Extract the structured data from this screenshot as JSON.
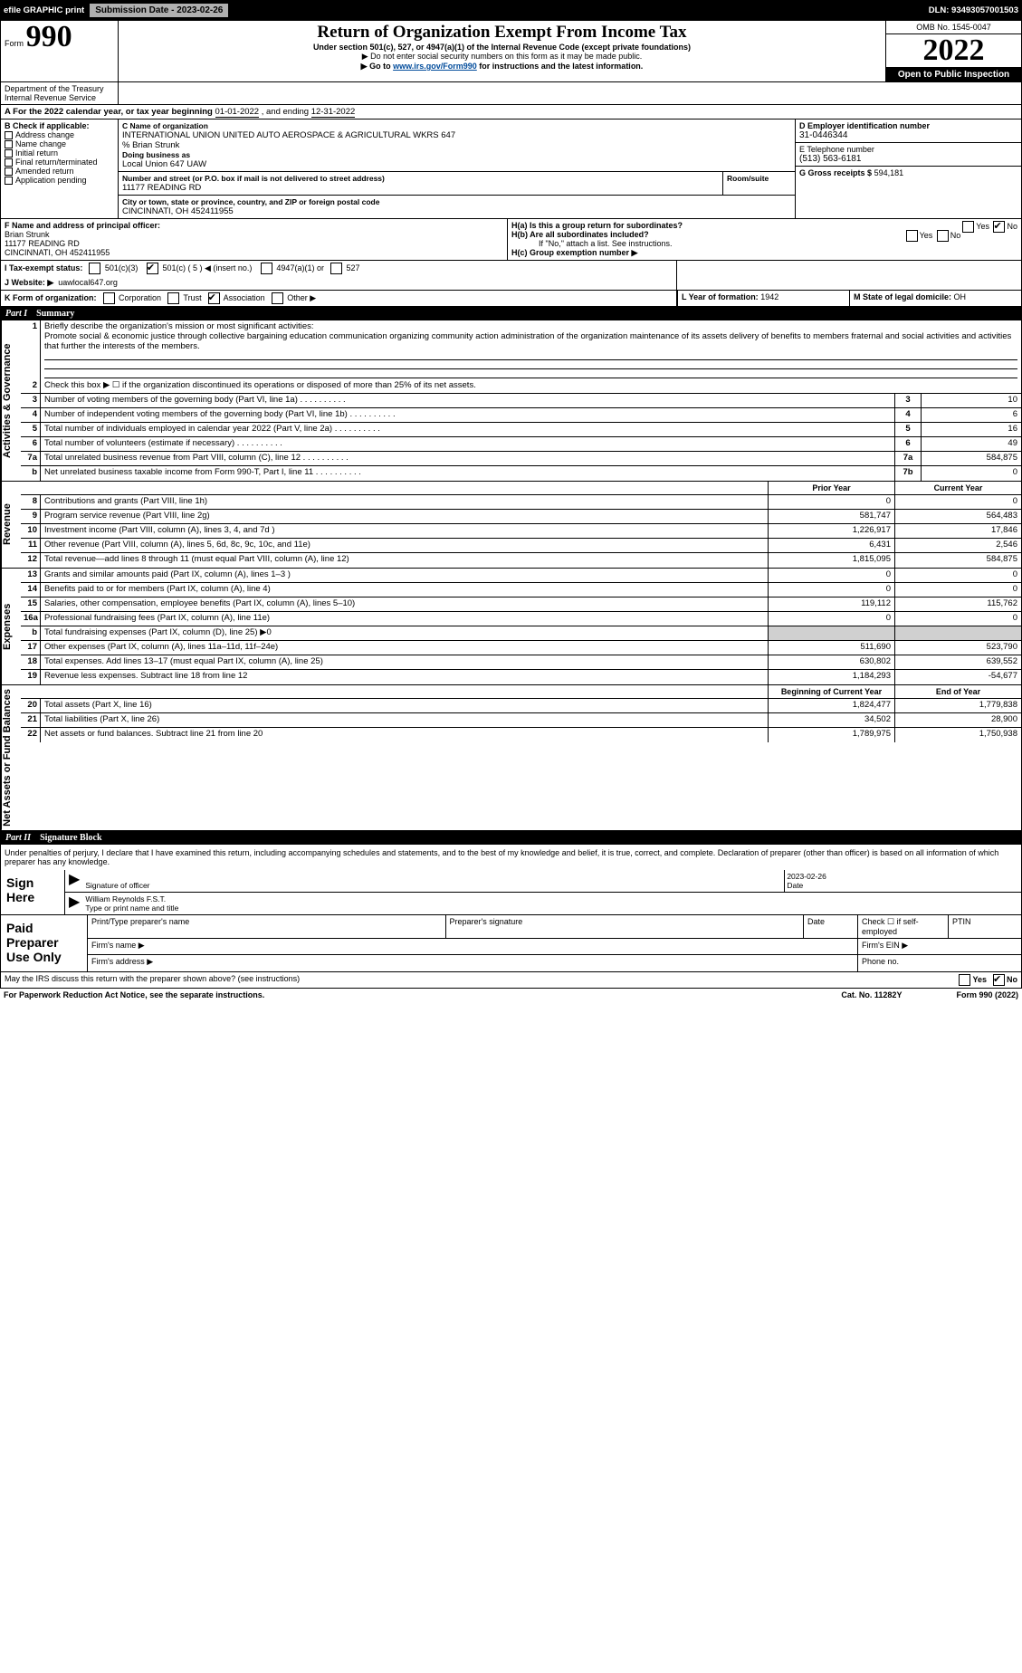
{
  "topbar": {
    "efile": "efile GRAPHIC print",
    "submission_label": "Submission Date - 2023-02-26",
    "dln": "DLN: 93493057001503"
  },
  "header": {
    "form_word": "Form",
    "form_num": "990",
    "title": "Return of Organization Exempt From Income Tax",
    "sub": "Under section 501(c), 527, or 4947(a)(1) of the Internal Revenue Code (except private foundations)",
    "note": "▶ Do not enter social security numbers on this form as it may be made public.",
    "goto_pre": "▶ Go to ",
    "goto_link": "www.irs.gov/Form990",
    "goto_post": " for instructions and the latest information.",
    "omb": "OMB No. 1545-0047",
    "year": "2022",
    "open": "Open to Public Inspection",
    "dept": "Department of the Treasury",
    "irs": "Internal Revenue Service"
  },
  "period": {
    "text_a": "A For the 2022 calendar year, or tax year beginning ",
    "begin": "01-01-2022",
    "text_b": " , and ending ",
    "end": "12-31-2022"
  },
  "blockB": {
    "B": "B Check if applicable:",
    "checks": [
      "Address change",
      "Name change",
      "Initial return",
      "Final return/terminated",
      "Amended return",
      "Application pending"
    ],
    "C_label": "C Name of organization",
    "C_name": "INTERNATIONAL UNION UNITED AUTO AEROSPACE & AGRICULTURAL WKRS 647",
    "care": "% Brian Strunk",
    "dba_label": "Doing business as",
    "dba": "Local Union 647 UAW",
    "street_label": "Number and street (or P.O. box if mail is not delivered to street address)",
    "street": "11177 READING RD",
    "room_label": "Room/suite",
    "city_label": "City or town, state or province, country, and ZIP or foreign postal code",
    "city": "CINCINNATI, OH  452411955",
    "D_label": "D Employer identification number",
    "D_val": "31-0446344",
    "E_label": "E Telephone number",
    "E_val": "(513) 563-6181",
    "G_label": "G Gross receipts $",
    "G_val": "594,181"
  },
  "rowFH": {
    "F_label": "F Name and address of principal officer:",
    "F_name": "Brian Strunk",
    "F_addr1": "11177 READING RD",
    "F_addr2": "CINCINNATI, OH  452411955",
    "Ha": "H(a)  Is this a group return for subordinates?",
    "Hb": "H(b)  Are all subordinates included?",
    "Hb_note": "If \"No,\" attach a list. See instructions.",
    "Hc": "H(c)  Group exemption number ▶",
    "Yes": "Yes",
    "No": "No"
  },
  "rowI": {
    "I": "I  Tax-exempt status:",
    "i1": "501(c)(3)",
    "i2": "501(c) ( 5 ) ◀ (insert no.)",
    "i3": "4947(a)(1) or",
    "i4": "527"
  },
  "rowJ": {
    "J": "J  Website: ▶",
    "val": "uawlocal647.org"
  },
  "rowK": {
    "K": "K Form of organization:",
    "opts": [
      "Corporation",
      "Trust",
      "Association",
      "Other ▶"
    ],
    "L": "L Year of formation: ",
    "L_val": "1942",
    "M": "M State of legal domicile: ",
    "M_val": "OH"
  },
  "partI": {
    "num": "Part I",
    "lbl": "Summary"
  },
  "summary": {
    "l1": "Briefly describe the organization's mission or most significant activities:",
    "l1_text": "Promote social & economic justice through collective bargaining education communication organizing community action administration of the organization maintenance of its assets delivery of benefits to members fraternal and social activities and activities that further the interests of the members.",
    "l2": "Check this box ▶ ☐ if the organization discontinued its operations or disposed of more than 25% of its net assets.",
    "rows": [
      {
        "n": "3",
        "d": "Number of voting members of the governing body (Part VI, line 1a)",
        "box": "3",
        "v": "10"
      },
      {
        "n": "4",
        "d": "Number of independent voting members of the governing body (Part VI, line 1b)",
        "box": "4",
        "v": "6"
      },
      {
        "n": "5",
        "d": "Total number of individuals employed in calendar year 2022 (Part V, line 2a)",
        "box": "5",
        "v": "16"
      },
      {
        "n": "6",
        "d": "Total number of volunteers (estimate if necessary)",
        "box": "6",
        "v": "49"
      },
      {
        "n": "7a",
        "d": "Total unrelated business revenue from Part VIII, column (C), line 12",
        "box": "7a",
        "v": "584,875"
      },
      {
        "n": "b",
        "d": "Net unrelated business taxable income from Form 990-T, Part I, line 11",
        "box": "7b",
        "v": "0"
      }
    ]
  },
  "twocol": {
    "prior": "Prior Year",
    "current": "Current Year",
    "boy": "Beginning of Current Year",
    "eoy": "End of Year"
  },
  "revenue": [
    {
      "n": "8",
      "d": "Contributions and grants (Part VIII, line 1h)",
      "p": "0",
      "c": "0"
    },
    {
      "n": "9",
      "d": "Program service revenue (Part VIII, line 2g)",
      "p": "581,747",
      "c": "564,483"
    },
    {
      "n": "10",
      "d": "Investment income (Part VIII, column (A), lines 3, 4, and 7d )",
      "p": "1,226,917",
      "c": "17,846"
    },
    {
      "n": "11",
      "d": "Other revenue (Part VIII, column (A), lines 5, 6d, 8c, 9c, 10c, and 11e)",
      "p": "6,431",
      "c": "2,546"
    },
    {
      "n": "12",
      "d": "Total revenue—add lines 8 through 11 (must equal Part VIII, column (A), line 12)",
      "p": "1,815,095",
      "c": "584,875"
    }
  ],
  "expenses": [
    {
      "n": "13",
      "d": "Grants and similar amounts paid (Part IX, column (A), lines 1–3 )",
      "p": "0",
      "c": "0"
    },
    {
      "n": "14",
      "d": "Benefits paid to or for members (Part IX, column (A), line 4)",
      "p": "0",
      "c": "0"
    },
    {
      "n": "15",
      "d": "Salaries, other compensation, employee benefits (Part IX, column (A), lines 5–10)",
      "p": "119,112",
      "c": "115,762"
    },
    {
      "n": "16a",
      "d": "Professional fundraising fees (Part IX, column (A), line 11e)",
      "p": "0",
      "c": "0"
    },
    {
      "n": "b",
      "d": "Total fundraising expenses (Part IX, column (D), line 25) ▶0",
      "p": "",
      "c": "",
      "shade": true
    },
    {
      "n": "17",
      "d": "Other expenses (Part IX, column (A), lines 11a–11d, 11f–24e)",
      "p": "511,690",
      "c": "523,790"
    },
    {
      "n": "18",
      "d": "Total expenses. Add lines 13–17 (must equal Part IX, column (A), line 25)",
      "p": "630,802",
      "c": "639,552"
    },
    {
      "n": "19",
      "d": "Revenue less expenses. Subtract line 18 from line 12",
      "p": "1,184,293",
      "c": "-54,677"
    }
  ],
  "netassets": [
    {
      "n": "20",
      "d": "Total assets (Part X, line 16)",
      "p": "1,824,477",
      "c": "1,779,838"
    },
    {
      "n": "21",
      "d": "Total liabilities (Part X, line 26)",
      "p": "34,502",
      "c": "28,900"
    },
    {
      "n": "22",
      "d": "Net assets or fund balances. Subtract line 21 from line 20",
      "p": "1,789,975",
      "c": "1,750,938"
    }
  ],
  "partII": {
    "num": "Part II",
    "lbl": "Signature Block"
  },
  "sig": {
    "decl": "Under penalties of perjury, I declare that I have examined this return, including accompanying schedules and statements, and to the best of my knowledge and belief, it is true, correct, and complete. Declaration of preparer (other than officer) is based on all information of which preparer has any knowledge.",
    "sign": "Sign Here",
    "sig_officer": "Signature of officer",
    "date_val": "2023-02-26",
    "date": "Date",
    "name_val": "William Reynolds  F.S.T.",
    "name": "Type or print name and title",
    "paid": "Paid Preparer Use Only",
    "pt": "Print/Type preparer's name",
    "ps": "Preparer's signature",
    "pd": "Date",
    "pc": "Check ☐ if self-employed",
    "ptin": "PTIN",
    "fn": "Firm's name  ▶",
    "fe": "Firm's EIN ▶",
    "fa": "Firm's address ▶",
    "ph": "Phone no."
  },
  "footer": {
    "q": "May the IRS discuss this return with the preparer shown above? (see instructions)",
    "pra": "For Paperwork Reduction Act Notice, see the separate instructions.",
    "cat": "Cat. No. 11282Y",
    "form": "Form 990 (2022)"
  },
  "vlabels": {
    "gov": "Activities & Governance",
    "rev": "Revenue",
    "exp": "Expenses",
    "net": "Net Assets or Fund Balances"
  }
}
